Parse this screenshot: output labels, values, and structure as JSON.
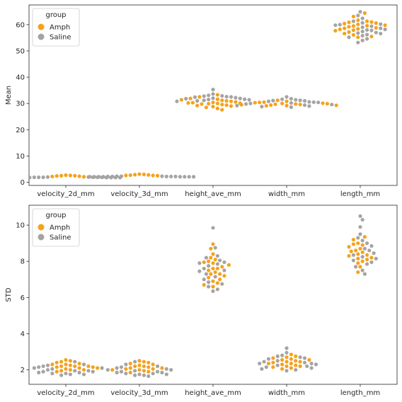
{
  "chart_data": [
    {
      "type": "scatter",
      "subtype": "swarm",
      "ylabel": "Mean",
      "ylim": [
        -1.2,
        67.5
      ],
      "yticks": [
        0,
        10,
        20,
        30,
        40,
        50,
        60
      ],
      "categories": [
        "velocity_2d_mm",
        "velocity_3d_mm",
        "height_ave_mm",
        "width_mm",
        "length_mm"
      ],
      "legend": {
        "title": "group",
        "position": "upper-left"
      },
      "series": [
        {
          "name": "Amph",
          "color": "#f5a21d",
          "groups": [
            [
              2.6,
              2.4,
              2.3,
              2.5,
              2.2,
              2.7,
              2.1,
              2.5
            ],
            [
              2.9,
              2.7,
              2.6,
              2.8,
              3.0,
              2.5,
              2.6,
              3.1
            ],
            [
              33.3,
              32.5,
              31.9,
              31.4,
              31.0,
              30.8,
              30.6,
              30.4,
              30.3,
              30.1,
              30.0,
              29.8,
              29.6,
              29.4,
              29.2,
              29.0,
              28.8,
              28.5,
              28.1,
              27.6,
              31.2,
              30.2,
              29.9,
              31.6
            ],
            [
              30.8,
              30.5,
              30.3,
              30.1,
              30.0,
              29.9,
              29.7,
              29.5,
              29.4,
              29.3,
              29.2,
              29.1,
              31.2,
              29.8,
              30.4,
              29.6
            ],
            [
              64.4,
              63.1,
              61.7,
              61.3,
              61.0,
              60.6,
              60.4,
              60.1,
              59.8,
              59.5,
              59.2,
              58.8,
              58.6,
              58.2,
              57.7,
              57.2,
              56.6,
              56.1,
              55.5,
              55.2,
              60.9,
              59.6,
              58.4,
              57.9
            ]
          ]
        },
        {
          "name": "Saline",
          "color": "#a6a4a3",
          "groups": [
            [
              2.0,
              1.9,
              1.9,
              1.9,
              1.8,
              1.8,
              1.8,
              1.8,
              1.8,
              1.8,
              1.8,
              1.8,
              1.9,
              1.9,
              1.9,
              2.0
            ],
            [
              2.3,
              2.2,
              2.2,
              2.2,
              2.1,
              2.1,
              2.1,
              2.1,
              2.1,
              2.1,
              2.1,
              2.1,
              2.2,
              2.2,
              2.3,
              2.3
            ],
            [
              35.3,
              33.6,
              33.1,
              32.8,
              32.5,
              32.2,
              32.0,
              31.8,
              31.6,
              31.4,
              31.2,
              31.0,
              30.8,
              32.9,
              32.4,
              31.9,
              32.6,
              31.5
            ],
            [
              32.5,
              31.8,
              31.6,
              31.4,
              31.2,
              31.0,
              30.8,
              30.6,
              30.4,
              30.2,
              30.0,
              29.8,
              29.6,
              29.4,
              29.2,
              29.0,
              28.8,
              28.6,
              31.1,
              30.5
            ],
            [
              64.9,
              63.5,
              62.4,
              61.3,
              60.7,
              60.2,
              59.8,
              59.4,
              59.0,
              58.6,
              58.2,
              57.8,
              57.4,
              57.0,
              56.6,
              56.2,
              55.8,
              55.2,
              54.6,
              54.0,
              53.2,
              60.0,
              58.0,
              56.8
            ]
          ]
        }
      ]
    },
    {
      "type": "scatter",
      "subtype": "swarm",
      "ylabel": "STD",
      "ylim": [
        1.2,
        11.1
      ],
      "yticks": [
        2,
        4,
        6,
        8,
        10
      ],
      "categories": [
        "velocity_2d_mm",
        "velocity_3d_mm",
        "height_ave_mm",
        "width_mm",
        "length_mm"
      ],
      "legend": {
        "title": "group",
        "position": "upper-left"
      },
      "series": [
        {
          "name": "Amph",
          "color": "#f5a21d",
          "groups": [
            [
              2.55,
              2.5,
              2.45,
              2.4,
              2.35,
              2.3,
              2.25,
              2.2,
              2.15,
              2.1,
              2.05,
              2.0,
              1.95,
              2.2,
              2.1,
              2.3,
              2.0,
              2.15,
              2.2,
              1.9
            ],
            [
              2.5,
              2.45,
              2.4,
              2.35,
              2.3,
              2.25,
              2.2,
              2.15,
              2.1,
              2.05,
              2.0,
              1.95,
              1.9,
              2.1,
              2.0,
              1.85,
              2.2,
              2.05
            ],
            [
              8.95,
              8.7,
              8.4,
              8.2,
              8.0,
              7.9,
              7.8,
              7.7,
              7.6,
              7.5,
              7.4,
              7.3,
              7.2,
              7.1,
              7.0,
              6.9,
              6.8,
              6.7,
              6.6,
              8.1,
              7.6,
              7.3,
              7.95
            ],
            [
              2.85,
              2.75,
              2.7,
              2.65,
              2.6,
              2.55,
              2.5,
              2.45,
              2.4,
              2.35,
              2.3,
              2.25,
              2.2,
              2.15,
              2.1,
              2.05,
              2.55,
              2.35,
              2.45,
              2.2
            ],
            [
              9.35,
              9.2,
              9.0,
              8.9,
              8.8,
              8.7,
              8.6,
              8.5,
              8.4,
              8.3,
              8.2,
              8.1,
              8.0,
              7.9,
              7.7,
              7.4,
              8.55,
              8.35,
              8.95,
              8.15
            ]
          ]
        },
        {
          "name": "Saline",
          "color": "#a6a4a3",
          "groups": [
            [
              2.45,
              2.3,
              2.25,
              2.2,
              2.15,
              2.1,
              2.05,
              2.0,
              1.95,
              1.9,
              1.85,
              1.8,
              1.75,
              1.7,
              1.75,
              1.8,
              1.85,
              1.9,
              2.1,
              1.95
            ],
            [
              2.45,
              2.3,
              2.2,
              2.1,
              2.05,
              2.0,
              1.95,
              1.9,
              1.85,
              1.8,
              1.75,
              1.7,
              1.65,
              1.7,
              1.75,
              1.8,
              1.85,
              1.9,
              2.0,
              2.15
            ],
            [
              9.85,
              8.75,
              8.3,
              8.2,
              8.05,
              7.95,
              7.85,
              7.75,
              7.6,
              7.45,
              7.3,
              7.15,
              7.0,
              6.85,
              6.75,
              6.6,
              6.45,
              6.35,
              7.9,
              7.5
            ],
            [
              3.2,
              2.95,
              2.8,
              2.75,
              2.7,
              2.65,
              2.6,
              2.5,
              2.45,
              2.4,
              2.35,
              2.3,
              2.25,
              2.2,
              2.15,
              2.1,
              2.05,
              2.0,
              1.95,
              2.35
            ],
            [
              10.5,
              10.3,
              9.9,
              9.5,
              9.3,
              9.15,
              9.0,
              8.85,
              8.7,
              8.6,
              8.45,
              8.35,
              8.25,
              8.15,
              8.05,
              7.95,
              7.85,
              7.7,
              7.5,
              7.3
            ]
          ]
        }
      ]
    }
  ]
}
